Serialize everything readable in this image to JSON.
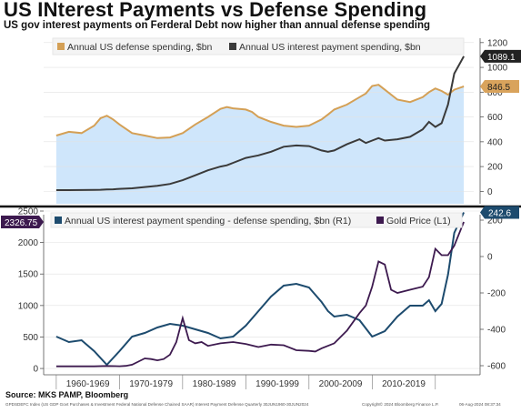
{
  "title": "US INterest Payments vs Defense Spending",
  "subtitle": "US gov interest payments on Ferderal Debt now higher than annual defense spending",
  "source": "Source: MKS PAMP, Bloomberg",
  "footer": "GPDSDEFC Index (US GDP Govt Purchases & Investment Federal National Defense Chained SAAR) Interest Payment Defense  Quarterly 30JUN1960-30JUN2024",
  "copyright": "Copyright© 2024 Bloomberg Finance L.P.",
  "date_stamp": "06-Aug-2024 08:37:34",
  "colors": {
    "defense": "#d4a056",
    "defense_fill": "#cfe6fb",
    "interest": "#3a3a3a",
    "diff": "#1d4b6e",
    "gold": "#3d1a4f",
    "badge_defense": "#d9a35c",
    "badge_interest": "#222222",
    "badge_gold": "#3d1a4f",
    "badge_diff": "#1d4b6e"
  },
  "chart_data": [
    {
      "type": "area",
      "legend": [
        "Annual  US defense spending, $bn",
        "Annual US interest payment spending, $bn"
      ],
      "x": [
        1960,
        1962,
        1964,
        1966,
        1967,
        1968,
        1969,
        1970,
        1972,
        1974,
        1976,
        1978,
        1980,
        1982,
        1984,
        1986,
        1987,
        1988,
        1990,
        1991,
        1992,
        1994,
        1996,
        1998,
        2000,
        2002,
        2003,
        2004,
        2006,
        2008,
        2009,
        2010,
        2011,
        2012,
        2014,
        2016,
        2018,
        2019,
        2020,
        2021,
        2022,
        2023,
        2024.5
      ],
      "series": [
        {
          "name": "Annual  US defense spending, $bn",
          "values": [
            450,
            480,
            470,
            530,
            590,
            610,
            580,
            540,
            470,
            450,
            430,
            435,
            470,
            540,
            600,
            665,
            680,
            670,
            660,
            640,
            600,
            560,
            530,
            520,
            530,
            580,
            620,
            660,
            700,
            760,
            790,
            850,
            860,
            820,
            740,
            720,
            760,
            800,
            830,
            810,
            780,
            820,
            846.5
          ]
        },
        {
          "name": "Annual US interest payment spending, $bn",
          "values": [
            10,
            10,
            11,
            12,
            13,
            15,
            17,
            20,
            25,
            35,
            45,
            60,
            90,
            130,
            170,
            200,
            210,
            230,
            270,
            280,
            290,
            320,
            360,
            370,
            365,
            330,
            320,
            330,
            380,
            420,
            390,
            410,
            430,
            410,
            420,
            440,
            500,
            560,
            520,
            550,
            700,
            950,
            1089.1
          ]
        }
      ],
      "last_values": {
        "defense": "846.5",
        "interest": "1089.1"
      },
      "y_ticks": [
        0,
        200,
        400,
        600,
        800,
        1000,
        1200
      ],
      "ylim": [
        -100,
        1250
      ]
    },
    {
      "type": "line",
      "legend": [
        "Annual US interest payment spending -  defense spending, $bn (R1)",
        "Gold Price (L1)"
      ],
      "x_tick_labels": [
        "1960-1969",
        "1970-1979",
        "1980-1989",
        "1990-1999",
        "2000-2009",
        "2010-2019"
      ],
      "series": [
        {
          "name": "Annual US interest payment spending -  defense spending, $bn (R1)",
          "axis": "right",
          "x": [
            1960,
            1962,
            1964,
            1966,
            1968,
            1970,
            1972,
            1974,
            1976,
            1978,
            1980,
            1982,
            1984,
            1986,
            1988,
            1990,
            1992,
            1994,
            1996,
            1998,
            2000,
            2002,
            2003,
            2004,
            2006,
            2008,
            2010,
            2012,
            2014,
            2016,
            2018,
            2019,
            2020,
            2021,
            2022,
            2023,
            2024.5
          ],
          "values": [
            -440,
            -470,
            -460,
            -520,
            -595,
            -520,
            -440,
            -420,
            -390,
            -370,
            -380,
            -400,
            -420,
            -450,
            -440,
            -380,
            -300,
            -220,
            -160,
            -150,
            -170,
            -250,
            -300,
            -330,
            -320,
            -350,
            -440,
            -410,
            -330,
            -270,
            -270,
            -240,
            -300,
            -260,
            -100,
            130,
            242.6
          ]
        },
        {
          "name": "Gold Price (L1)",
          "axis": "left",
          "x": [
            1960,
            1962,
            1964,
            1966,
            1968,
            1970,
            1971,
            1972,
            1973,
            1974,
            1975,
            1976,
            1977,
            1978,
            1979,
            1980,
            1981,
            1982,
            1983,
            1984,
            1986,
            1988,
            1990,
            1992,
            1994,
            1996,
            1998,
            2000,
            2001,
            2002,
            2004,
            2006,
            2008,
            2009,
            2010,
            2011,
            2012,
            2013,
            2014,
            2016,
            2018,
            2019,
            2020,
            2021,
            2022,
            2023,
            2024.5
          ],
          "values": [
            35,
            35,
            35,
            35,
            40,
            36,
            42,
            60,
            110,
            160,
            150,
            130,
            150,
            220,
            420,
            800,
            450,
            400,
            420,
            360,
            400,
            420,
            390,
            340,
            380,
            370,
            290,
            280,
            270,
            320,
            400,
            600,
            880,
            1000,
            1300,
            1700,
            1650,
            1250,
            1200,
            1250,
            1300,
            1450,
            1900,
            1800,
            1800,
            1950,
            2326.75
          ]
        }
      ],
      "last_values": {
        "gold": "2326.75",
        "diff": "242.6"
      },
      "left_ticks": [
        0,
        500,
        1000,
        1500,
        2000,
        2500
      ],
      "right_ticks": [
        -600,
        -400,
        -200,
        0,
        200
      ],
      "ylim_left": [
        -100,
        2500
      ],
      "ylim_right": [
        -650,
        250
      ]
    }
  ]
}
